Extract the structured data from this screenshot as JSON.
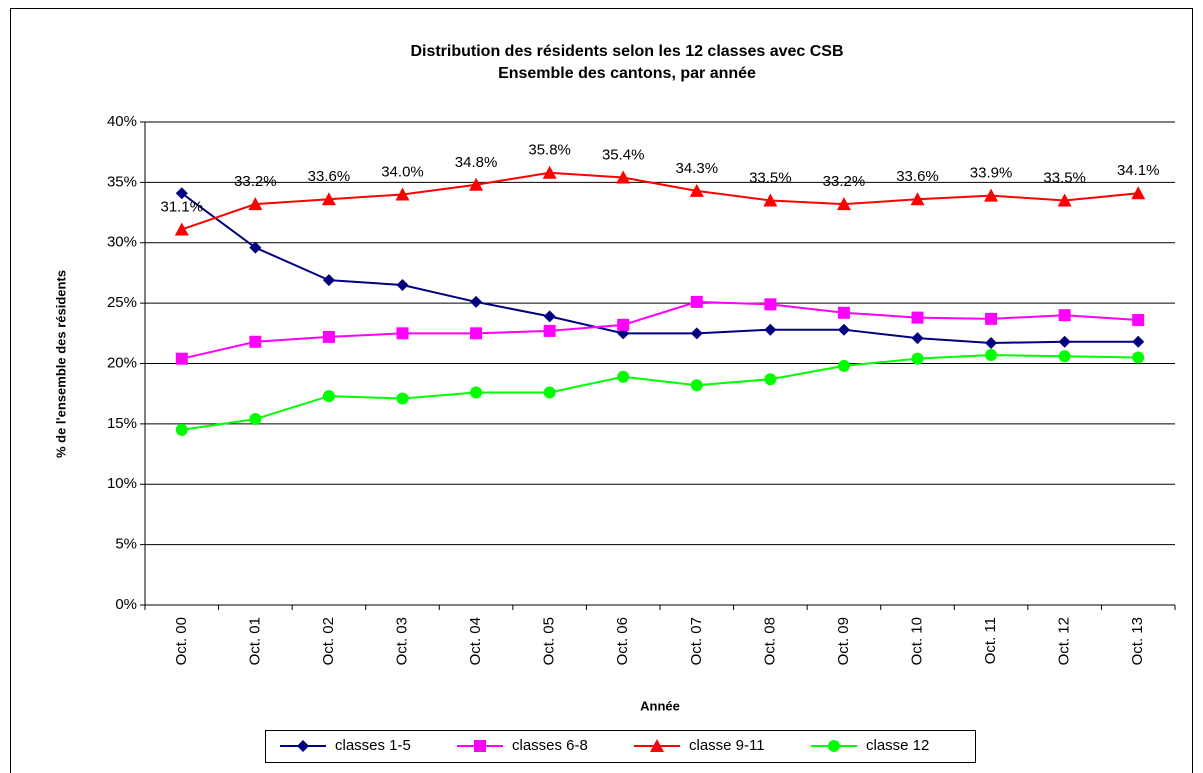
{
  "chart_data": {
    "type": "line",
    "title": "Distribution des résidents selon les 12 classes avec CSB",
    "subtitle": "Ensemble des cantons, par année",
    "x_label": "Année",
    "y_label": "% de l'ensemble des résidents",
    "categories": [
      "Oct. 00",
      "Oct. 01",
      "Oct. 02",
      "Oct. 03",
      "Oct. 04",
      "Oct. 05",
      "Oct. 06",
      "Oct. 07",
      "Oct. 08",
      "Oct. 09",
      "Oct. 10",
      "Oct. 11",
      "Oct. 12",
      "Oct. 13"
    ],
    "series": [
      {
        "name": "classes 1-5",
        "color": "#000080",
        "marker": "diamond",
        "values": [
          34.1,
          29.6,
          26.9,
          26.5,
          25.1,
          23.9,
          22.5,
          22.5,
          22.8,
          22.8,
          22.1,
          21.7,
          21.8,
          21.8
        ]
      },
      {
        "name": "classes 6-8",
        "color": "#ff00ff",
        "marker": "square",
        "values": [
          20.4,
          21.8,
          22.2,
          22.5,
          22.5,
          22.7,
          23.2,
          25.1,
          24.9,
          24.2,
          23.8,
          23.7,
          24.0,
          23.6
        ]
      },
      {
        "name": "classe 9-11",
        "color": "#ff0000",
        "marker": "triangle",
        "values": [
          31.1,
          33.2,
          33.6,
          34.0,
          34.8,
          35.8,
          35.4,
          34.3,
          33.5,
          33.2,
          33.6,
          33.9,
          33.5,
          34.1
        ],
        "value_labels": [
          "31.1%",
          "33.2%",
          "33.6%",
          "34.0%",
          "34.8%",
          "35.8%",
          "35.4%",
          "34.3%",
          "33.5%",
          "33.2%",
          "33.6%",
          "33.9%",
          "33.5%",
          "34.1%"
        ]
      },
      {
        "name": "classe 12",
        "color": "#00ff00",
        "marker": "circle",
        "values": [
          14.5,
          15.4,
          17.3,
          17.1,
          17.6,
          17.6,
          18.9,
          18.2,
          18.7,
          19.8,
          20.4,
          20.7,
          20.6,
          20.5
        ]
      }
    ],
    "ylim": [
      0,
      40
    ],
    "yticks": [
      {
        "value": 0,
        "label": "0%"
      },
      {
        "value": 5,
        "label": "5%"
      },
      {
        "value": 10,
        "label": "10%"
      },
      {
        "value": 15,
        "label": "15%"
      },
      {
        "value": 20,
        "label": "20%"
      },
      {
        "value": 25,
        "label": "25%"
      },
      {
        "value": 30,
        "label": "30%"
      },
      {
        "value": 35,
        "label": "35%"
      },
      {
        "value": 40,
        "label": "40%"
      }
    ],
    "grid": true,
    "legend": "bottom"
  }
}
